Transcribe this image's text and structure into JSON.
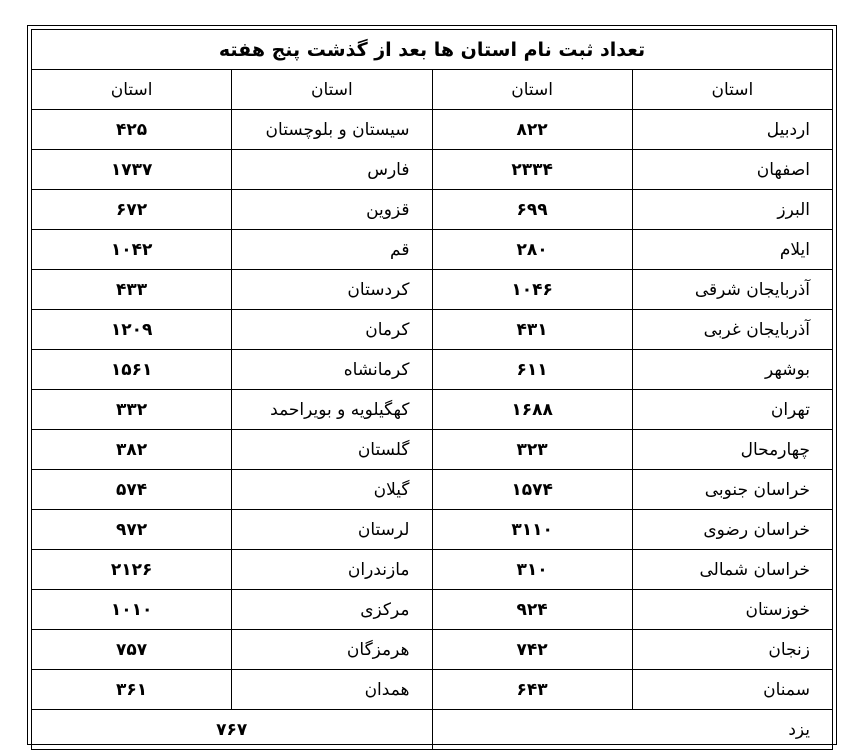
{
  "title": "تعداد ثبت نام استان ها بعد از گذشت پنج هفته",
  "headers": [
    "استان",
    "استان",
    "استان",
    "استان"
  ],
  "rows": [
    {
      "p1": "اردبیل",
      "v1": "۸۲۲",
      "p2": "سیستان و بلوچستان",
      "v2": "۴۲۵"
    },
    {
      "p1": "اصفهان",
      "v1": "۲۳۳۴",
      "p2": "فارس",
      "v2": "۱۷۳۷"
    },
    {
      "p1": "البرز",
      "v1": "۶۹۹",
      "p2": "قزوین",
      "v2": "۶۷۲"
    },
    {
      "p1": "ایلام",
      "v1": "۲۸۰",
      "p2": "قم",
      "v2": "۱۰۴۲"
    },
    {
      "p1": "آذربایجان شرقی",
      "v1": "۱۰۴۶",
      "p2": "کردستان",
      "v2": "۴۳۳"
    },
    {
      "p1": "آذربایجان غربی",
      "v1": "۴۳۱",
      "p2": "کرمان",
      "v2": "۱۲۰۹"
    },
    {
      "p1": "بوشهر",
      "v1": "۶۱۱",
      "p2": "کرمانشاه",
      "v2": "۱۵۶۱"
    },
    {
      "p1": "تهران",
      "v1": "۱۶۸۸",
      "p2": "کهگیلویه و بویراحمد",
      "v2": "۳۳۲"
    },
    {
      "p1": "چهارمحال",
      "v1": "۳۲۳",
      "p2": "گلستان",
      "v2": "۳۸۲"
    },
    {
      "p1": "خراسان جنوبی",
      "v1": "۱۵۷۴",
      "p2": "گیلان",
      "v2": "۵۷۴"
    },
    {
      "p1": "خراسان رضوی",
      "v1": "۳۱۱۰",
      "p2": "لرستان",
      "v2": "۹۷۲"
    },
    {
      "p1": "خراسان شمالی",
      "v1": "۳۱۰",
      "p2": "مازندران",
      "v2": "۲۱۲۶"
    },
    {
      "p1": "خوزستان",
      "v1": "۹۲۴",
      "p2": "مرکزی",
      "v2": "۱۰۱۰"
    },
    {
      "p1": "زنجان",
      "v1": "۷۴۲",
      "p2": "هرمزگان",
      "v2": "۷۵۷"
    },
    {
      "p1": "سمنان",
      "v1": "۶۴۳",
      "p2": "همدان",
      "v2": "۳۶۱"
    }
  ],
  "last": {
    "p": "یزد",
    "v": "۷۶۷"
  }
}
